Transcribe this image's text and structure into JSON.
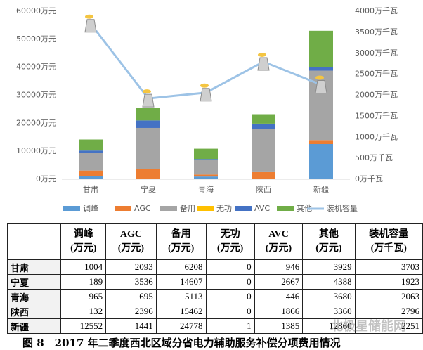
{
  "chart_data": {
    "type": "bar",
    "stacked": true,
    "categories": [
      "甘肃",
      "宁夏",
      "青海",
      "陕西",
      "新疆"
    ],
    "series": [
      {
        "name": "调峰",
        "color": "#5b9bd5",
        "values": [
          1004,
          189,
          965,
          132,
          12552
        ]
      },
      {
        "name": "AGC",
        "color": "#ed7d31",
        "values": [
          2093,
          3536,
          695,
          2396,
          1441
        ]
      },
      {
        "name": "备用",
        "color": "#a5a5a5",
        "values": [
          6208,
          14607,
          5113,
          15462,
          24778
        ]
      },
      {
        "name": "无功",
        "color": "#ffc000",
        "values": [
          0,
          0,
          0,
          0,
          1
        ]
      },
      {
        "name": "AVC",
        "color": "#4472c4",
        "values": [
          946,
          2667,
          446,
          1866,
          1385
        ]
      },
      {
        "name": "其他",
        "color": "#70ad47",
        "values": [
          3929,
          4388,
          3680,
          3360,
          12860
        ]
      },
      {
        "name": "装机容量",
        "color": "#9dc3e6",
        "axis": "y2",
        "type": "line",
        "values": [
          3703,
          1923,
          2063,
          2796,
          2251
        ]
      }
    ],
    "ylim": [
      0,
      60000
    ],
    "yticks": [
      {
        "value": 0,
        "label": "0万元"
      },
      {
        "value": 10000,
        "label": "10000万元"
      },
      {
        "value": 20000,
        "label": "20000万元"
      },
      {
        "value": 30000,
        "label": "30000万元"
      },
      {
        "value": 40000,
        "label": "40000万元"
      },
      {
        "value": 50000,
        "label": "50000万元"
      },
      {
        "value": 60000,
        "label": "60000万元"
      }
    ],
    "y2lim": [
      0,
      4000
    ],
    "y2ticks": [
      {
        "value": 0,
        "label": "0万千瓦"
      },
      {
        "value": 500,
        "label": "500万千瓦"
      },
      {
        "value": 1000,
        "label": "1000万千瓦"
      },
      {
        "value": 1500,
        "label": "1500万千瓦"
      },
      {
        "value": 2000,
        "label": "2000万千瓦"
      },
      {
        "value": 2500,
        "label": "2500万千瓦"
      },
      {
        "value": 3000,
        "label": "3000万千瓦"
      },
      {
        "value": 3500,
        "label": "3500万千瓦"
      },
      {
        "value": 4000,
        "label": "4000万千瓦"
      }
    ],
    "grid": false,
    "legend": "bottom"
  },
  "table": {
    "headers": [
      {
        "name": "调峰",
        "unit": "(万元)"
      },
      {
        "name": "AGC",
        "unit": "(万元)"
      },
      {
        "name": "备用",
        "unit": "(万元)"
      },
      {
        "name": "无功",
        "unit": "(万元)"
      },
      {
        "name": "AVC",
        "unit": "(万元)"
      },
      {
        "name": "其他",
        "unit": "(万元)"
      },
      {
        "name": "装机容量",
        "unit": "(万千瓦)"
      }
    ]
  },
  "caption": "图 8　2017 年二季度西北区域分省电力辅助服务补偿分项费用情况",
  "watermark": "北极星储能网"
}
